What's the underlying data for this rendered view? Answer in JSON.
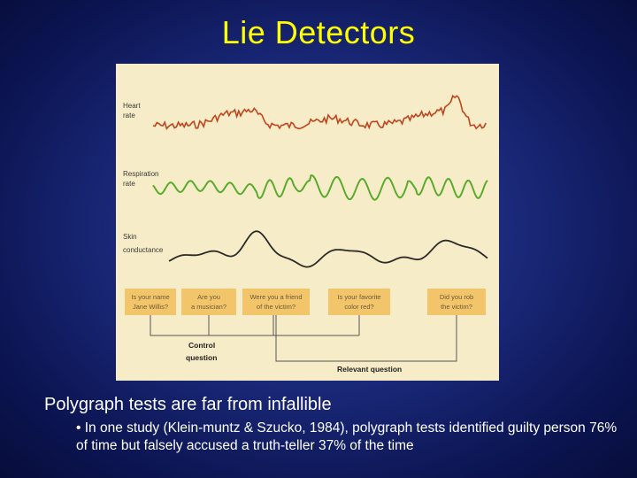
{
  "slide": {
    "title": "Lie Detectors",
    "main_point": "Polygraph tests are far from infallible",
    "sub_point": "• In one study (Klein-muntz & Szucko, 1984), polygraph tests identified guilty person 76% of time but falsely accused a truth-teller 37% of the time"
  },
  "figure": {
    "trace_labels": {
      "heart_line1": "Heart",
      "heart_line2": "rate",
      "resp_line1": "Respiration",
      "resp_line2": "rate",
      "skin_line1": "Skin",
      "skin_line2": "conductance"
    },
    "questions": [
      {
        "line1": "Is your name",
        "line2": "Jane Willis?"
      },
      {
        "line1": "Are you",
        "line2": "a musician?"
      },
      {
        "line1": "Were you a friend",
        "line2": "of the victim?"
      },
      {
        "line1": "Is your favorite",
        "line2": "color red?"
      },
      {
        "line1": "Did you rob",
        "line2": "the victim?"
      }
    ],
    "control_label_line1": "Control",
    "control_label_line2": "question",
    "relevant_label": "Relevant question",
    "colors": {
      "heart": "#c0451e",
      "respiration": "#5aaa2e",
      "skin": "#2a2a2a",
      "question_box": "#f2c56a",
      "background": "#f6ecc7",
      "title": "#ffff00"
    }
  }
}
